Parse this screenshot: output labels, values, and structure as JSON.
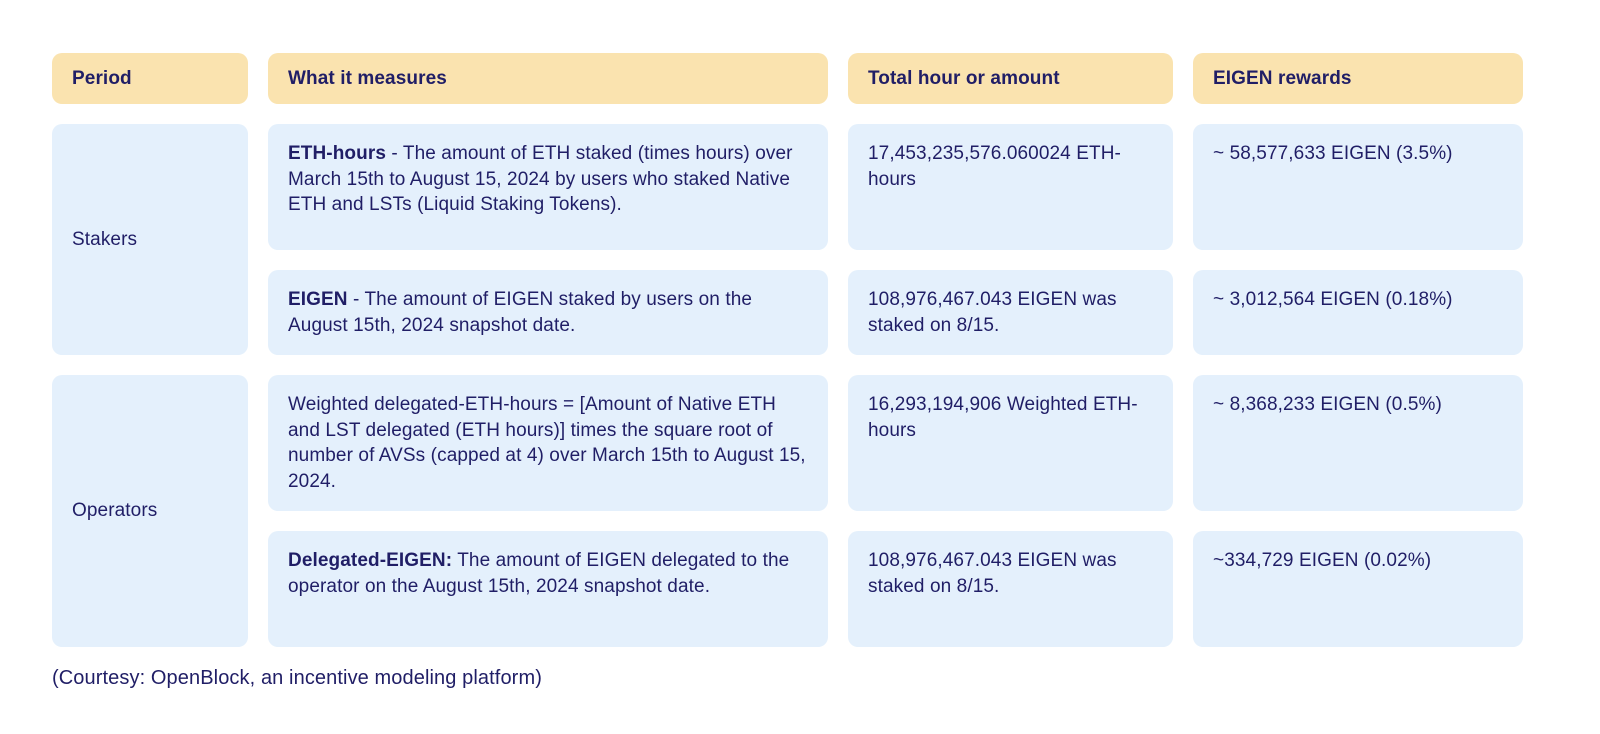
{
  "colors": {
    "header_bg": "#FAE3AF",
    "cell_bg": "#E4F0FC",
    "text": "#201E66"
  },
  "table": {
    "headers": [
      "Period",
      "What it measures",
      "Total hour or amount",
      "EIGEN rewards"
    ],
    "groups": [
      {
        "period": "Stakers",
        "rows": [
          {
            "measure_bold": "ETH-hours",
            "measure_rest": " -  The amount of ETH staked (times hours) over March 15th to August 15, 2024  by users who staked Native ETH and LSTs (Liquid Staking Tokens).",
            "total": "17,453,235,576.060024 ETH-hours",
            "rewards": "~ 58,577,633 EIGEN (3.5%)"
          },
          {
            "measure_bold": "EIGEN",
            "measure_rest": " - The amount of EIGEN staked by users on the August 15th, 2024 snapshot date.",
            "total": "108,976,467.043 EIGEN was staked on 8/15.",
            "rewards": "~ 3,012,564 EIGEN  (0.18%)"
          }
        ]
      },
      {
        "period": "Operators",
        "rows": [
          {
            "measure_bold": "",
            "measure_rest": "Weighted delegated-ETH-hours = [Amount of Native ETH and LST delegated (ETH hours)] times the square root of number of  AVSs (capped at 4) over March 15th to August 15, 2024.",
            "total": "16,293,194,906 Weighted ETH-hours",
            "rewards": "~ 8,368,233 EIGEN (0.5%)"
          },
          {
            "measure_bold": "Delegated-EIGEN:",
            "measure_rest": " The amount of EIGEN delegated to the operator on the August 15th, 2024 snapshot date.",
            "total": "108,976,467.043 EIGEN was staked on 8/15.",
            "rewards": "~334,729 EIGEN (0.02%)"
          }
        ]
      }
    ]
  },
  "caption": "(Courtesy: OpenBlock, an incentive modeling platform)",
  "chart_data": {
    "type": "table",
    "title": "",
    "columns": [
      "Period",
      "What it measures",
      "Total hour or amount",
      "EIGEN rewards"
    ],
    "rows": [
      [
        "Stakers",
        "ETH-hours -  The amount of ETH staked (times hours) over March 15th to August 15, 2024  by users who staked Native ETH and LSTs (Liquid Staking Tokens).",
        "17,453,235,576.060024 ETH-hours",
        "~ 58,577,633 EIGEN (3.5%)"
      ],
      [
        "Stakers",
        "EIGEN - The amount of EIGEN staked by users on the August 15th, 2024 snapshot date.",
        "108,976,467.043 EIGEN was staked on 8/15.",
        "~ 3,012,564 EIGEN  (0.18%)"
      ],
      [
        "Operators",
        "Weighted delegated-ETH-hours = [Amount of Native ETH and LST delegated (ETH hours)] times the square root of number of  AVSs (capped at 4) over March 15th to August 15, 2024.",
        "16,293,194,906 Weighted ETH-hours",
        "~ 8,368,233 EIGEN (0.5%)"
      ],
      [
        "Operators",
        "Delegated-EIGEN: The amount of EIGEN delegated to the operator on the August 15th, 2024 snapshot date.",
        "108,976,467.043 EIGEN was staked on 8/15.",
        "~334,729 EIGEN (0.02%)"
      ]
    ],
    "eigen_rewards_values": [
      58577633,
      3012564,
      8368233,
      334729
    ],
    "eigen_rewards_pct": [
      3.5,
      0.18,
      0.5,
      0.02
    ]
  }
}
